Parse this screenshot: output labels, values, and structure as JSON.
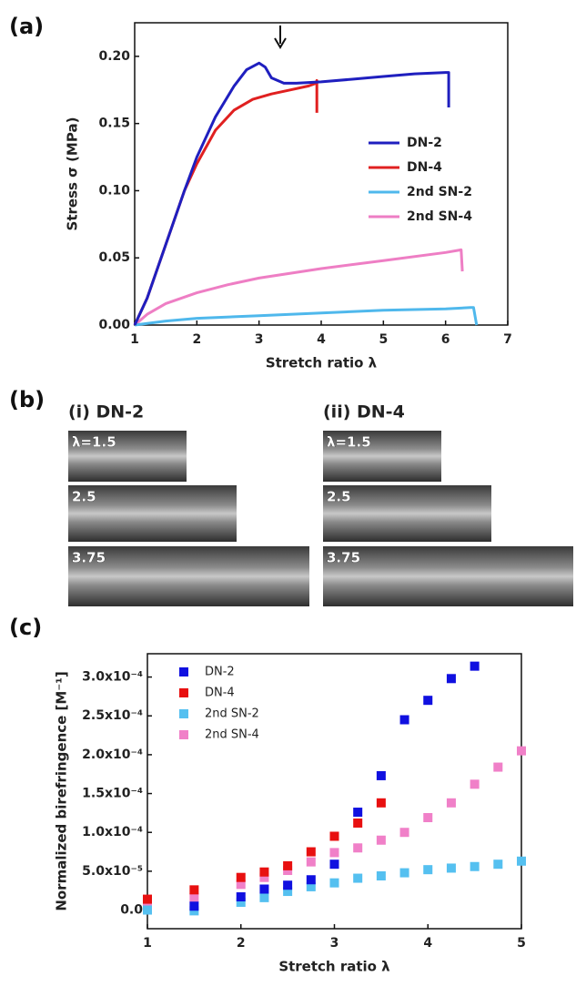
{
  "chart_data": [
    {
      "type": "line",
      "label": "(a)",
      "xlabel": "Stretch ratio λ",
      "ylabel": "Stress σ (MPa)",
      "xlim": [
        1,
        7
      ],
      "xticks": [
        1,
        2,
        3,
        4,
        5,
        6,
        7
      ],
      "ylim": [
        0,
        0.225
      ],
      "yticks": [
        {
          "value": 0,
          "label": "0.00"
        },
        0.05,
        {
          "value": 0.1,
          "label": "0.10"
        },
        0.15,
        {
          "value": 0.2,
          "label": "0.20"
        }
      ],
      "series": [
        {
          "name": "DN-2",
          "color": "#1f1fbf",
          "x": [
            1,
            1.2,
            1.5,
            1.8,
            2,
            2.3,
            2.6,
            2.8,
            3.0,
            3.1,
            3.2,
            3.4,
            3.6,
            4,
            4.5,
            5,
            5.5,
            6.0,
            6.05,
            6.05
          ],
          "values": [
            0,
            0.02,
            0.06,
            0.1,
            0.125,
            0.155,
            0.178,
            0.19,
            0.195,
            0.192,
            0.184,
            0.18,
            0.18,
            0.181,
            0.183,
            0.185,
            0.187,
            0.188,
            0.188,
            0.162
          ]
        },
        {
          "name": "DN-4",
          "color": "#e02020",
          "x": [
            1,
            1.2,
            1.5,
            1.8,
            2,
            2.3,
            2.6,
            2.9,
            3.2,
            3.5,
            3.8,
            3.92,
            3.93,
            3.93
          ],
          "values": [
            0,
            0.02,
            0.06,
            0.1,
            0.12,
            0.145,
            0.16,
            0.168,
            0.172,
            0.175,
            0.178,
            0.18,
            0.182,
            0.158
          ]
        },
        {
          "name": "2nd SN-2",
          "color": "#4fb8ec",
          "x": [
            1,
            1.5,
            2,
            3,
            4,
            5,
            6,
            6.4,
            6.45,
            6.5
          ],
          "values": [
            0,
            0.003,
            0.005,
            0.007,
            0.009,
            0.011,
            0.012,
            0.013,
            0.013,
            0
          ]
        },
        {
          "name": "2nd SN-4",
          "color": "#ee7ec4",
          "x": [
            1,
            1.2,
            1.5,
            2,
            2.5,
            3,
            4,
            5,
            6,
            6.25,
            6.27
          ],
          "values": [
            0,
            0.008,
            0.016,
            0.024,
            0.03,
            0.035,
            0.042,
            0.048,
            0.054,
            0.056,
            0.04
          ]
        }
      ]
    },
    {
      "type": "scatter",
      "label": "(c)",
      "xlabel": "Stretch ratio λ",
      "ylabel": "Normalized birefringence [M⁻¹]",
      "xlim": [
        1,
        5
      ],
      "xticks": [
        1,
        2,
        3,
        4,
        5
      ],
      "ylim": [
        -2.4e-05,
        0.00033
      ],
      "yticks": [
        {
          "value": 0,
          "label": "0.0"
        },
        {
          "value": 5e-05,
          "label": "5.0x10⁻⁵"
        },
        {
          "value": 0.0001,
          "label": "1.0x10⁻⁴"
        },
        {
          "value": 0.00015,
          "label": "1.5x10⁻⁴"
        },
        {
          "value": 0.0002,
          "label": "2.0x10⁻⁴"
        },
        {
          "value": 0.00025,
          "label": "2.5x10⁻⁴"
        },
        {
          "value": 0.0003,
          "label": "3.0x10⁻⁴"
        }
      ],
      "series": [
        {
          "name": "DN-2",
          "color": "#1010e0",
          "x": [
            1.5,
            2,
            2.25,
            2.5,
            2.75,
            3,
            3.25,
            3.5,
            3.75,
            4,
            4.25,
            4.5
          ],
          "values": [
            5e-06,
            1.7e-05,
            2.7e-05,
            3.2e-05,
            3.9e-05,
            5.9e-05,
            0.000126,
            0.000173,
            0.000245,
            0.00027,
            0.000298,
            0.000314
          ]
        },
        {
          "name": "DN-4",
          "color": "#e81010",
          "x": [
            1,
            1.5,
            2,
            2.25,
            2.5,
            2.75,
            3,
            3.25,
            3.5
          ],
          "values": [
            1.4e-05,
            2.6e-05,
            4.2e-05,
            4.9e-05,
            5.7e-05,
            7.5e-05,
            9.5e-05,
            0.000112,
            0.000138
          ]
        },
        {
          "name": "2nd SN-2",
          "color": "#55c0f0",
          "x": [
            1,
            1.5,
            2,
            2.25,
            2.5,
            2.75,
            3,
            3.25,
            3.5,
            3.75,
            4,
            4.25,
            4.5,
            4.75,
            5
          ],
          "values": [
            0,
            -1e-06,
            1e-05,
            1.6e-05,
            2.4e-05,
            3e-05,
            3.5e-05,
            4.1e-05,
            4.4e-05,
            4.8e-05,
            5.2e-05,
            5.4e-05,
            5.6e-05,
            5.9e-05,
            6.3e-05
          ]
        },
        {
          "name": "2nd SN-4",
          "color": "#f080c8",
          "x": [
            1,
            1.5,
            2,
            2.25,
            2.5,
            2.75,
            3,
            3.25,
            3.5,
            3.75,
            4,
            4.25,
            4.5,
            4.75,
            5
          ],
          "values": [
            5e-06,
            1.6e-05,
            3.3e-05,
            4.2e-05,
            5.1e-05,
            6.2e-05,
            7.4e-05,
            8e-05,
            9e-05,
            0.0001,
            0.000119,
            0.000138,
            0.000162,
            0.000184,
            0.000205
          ]
        }
      ]
    }
  ],
  "photo_panel": {
    "label": "(b)",
    "columns": [
      {
        "title": "(i) DN-2",
        "stretches": [
          "λ=1.5",
          "2.5",
          "3.75"
        ]
      },
      {
        "title": "(ii) DN-4",
        "stretches": [
          "λ=1.5",
          "2.5",
          "3.75"
        ]
      }
    ]
  }
}
